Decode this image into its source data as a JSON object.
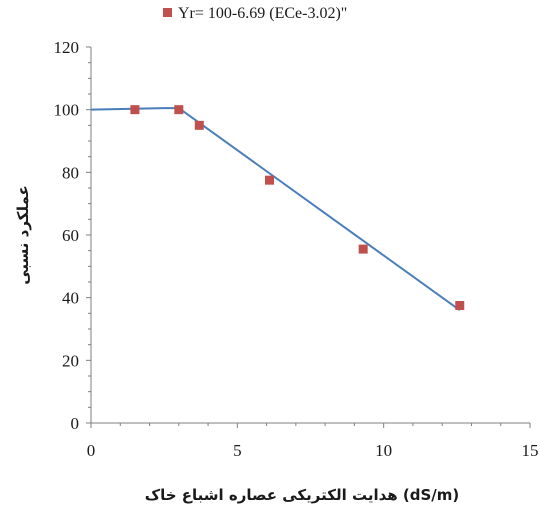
{
  "chart_data": {
    "type": "scatter",
    "xlabel": "هدایت الکتریکی عصاره اشباع خاک (dS/m)",
    "ylabel": "عملکرد نسبی",
    "xlim": [
      0,
      15
    ],
    "ylim": [
      0,
      120
    ],
    "x_ticks": [
      "0",
      "5",
      "10",
      "15"
    ],
    "y_ticks": [
      "0",
      "20",
      "40",
      "60",
      "80",
      "100",
      "120"
    ],
    "grid": false,
    "legend_position": "top",
    "series": [
      {
        "name": "Yr= 100-6.69 (ECe-3.02)\"",
        "kind": "scatter",
        "marker": "square",
        "color": "#c0504d",
        "x": [
          1.5,
          3.0,
          3.7,
          6.1,
          9.3,
          12.6
        ],
        "y": [
          100,
          100,
          95,
          77.5,
          55.5,
          37.5
        ]
      },
      {
        "kind": "line",
        "color": "#4a7ebb",
        "x": [
          0,
          2.5,
          3.0,
          12.6
        ],
        "y": [
          100,
          100.5,
          100.5,
          36
        ]
      }
    ]
  }
}
